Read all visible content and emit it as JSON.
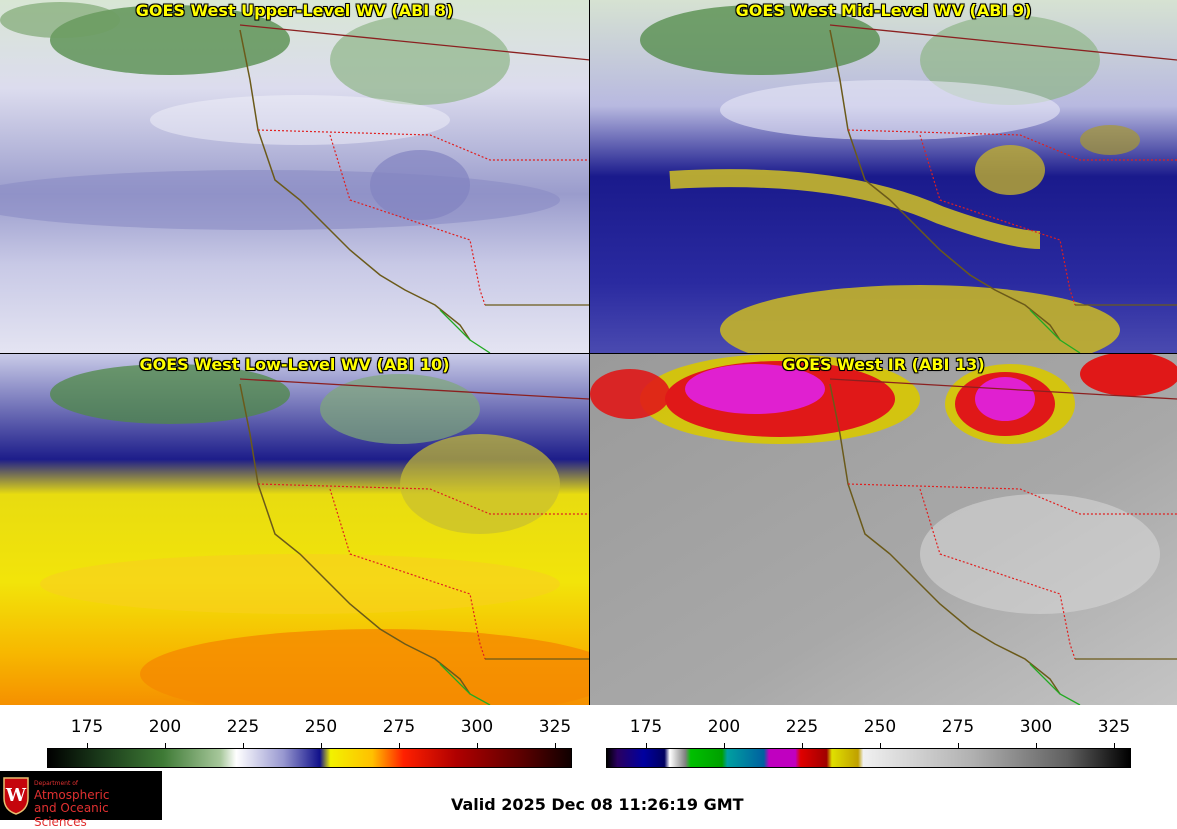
{
  "panels": [
    {
      "title": "GOES West Upper-Level WV (ABI 8)"
    },
    {
      "title": "GOES West Mid-Level WV (ABI 9)"
    },
    {
      "title": "GOES West Low-Level WV (ABI 10)"
    },
    {
      "title": "GOES West IR (ABI 13)"
    }
  ],
  "colorbars": {
    "wv": {
      "ticks": [
        "175",
        "200",
        "225",
        "250",
        "275",
        "300",
        "325"
      ]
    },
    "ir": {
      "ticks": [
        "175",
        "200",
        "225",
        "250",
        "275",
        "300",
        "325"
      ]
    }
  },
  "logo": {
    "line1": "Department of",
    "line2": "Atmospheric",
    "line3": "and Oceanic Sciences",
    "seal_letter": "W"
  },
  "footer": {
    "valid": "Valid 2025 Dec 08 11:26:19 GMT"
  }
}
